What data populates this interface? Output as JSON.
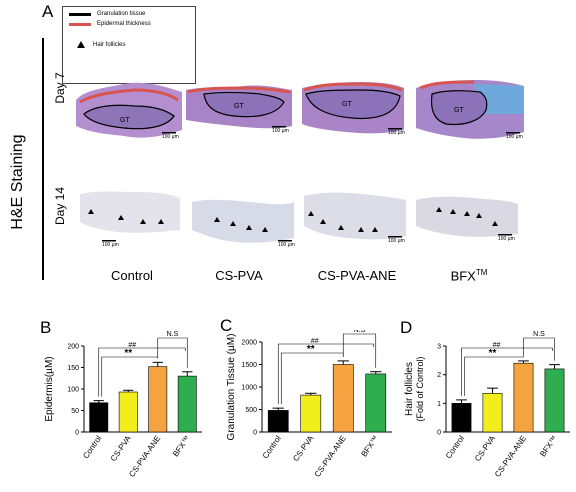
{
  "panels": {
    "A": "A",
    "B": "B",
    "C": "C",
    "D": "D"
  },
  "legend": {
    "granulation": "Granulation tissue",
    "epidermal": "Epidermal thickness",
    "hair": "Hair follicles",
    "colors": {
      "granulation": "#000000",
      "epidermal": "#d9534f"
    }
  },
  "staining_title": "H&E Staining",
  "days": {
    "day7": "Day 7",
    "day14": "Day 14"
  },
  "gt_label": "GT",
  "scale_label": "100 µm",
  "groups": [
    "Control",
    "CS-PVA",
    "CS-PVA-ANE",
    "BFX"
  ],
  "tm": "TM",
  "bar_colors": [
    "#000000",
    "#f2ee1b",
    "#f4a340",
    "#2fae4f"
  ],
  "chart_data": [
    {
      "type": "bar",
      "panel": "B",
      "categories": [
        "Control",
        "CS-PVA",
        "CS-PVA-ANE",
        "BFX™"
      ],
      "values": [
        68,
        93,
        152,
        130
      ],
      "errors": [
        5,
        4,
        10,
        10
      ],
      "ylabel": "Epidermis(µM)",
      "ylim": [
        0,
        200
      ],
      "yticks": [
        0,
        50,
        100,
        150,
        200
      ],
      "significance": {
        "hash": "##",
        "star": "**",
        "ns": "N.S"
      }
    },
    {
      "type": "bar",
      "panel": "C",
      "categories": [
        "Control",
        "CS-PVA",
        "CS-PVA-ANE",
        "BFX™"
      ],
      "values": [
        480,
        820,
        1500,
        1290
      ],
      "errors": [
        50,
        40,
        80,
        50
      ],
      "ylabel": "Granulation Tissue (µM)",
      "ylim": [
        0,
        2000
      ],
      "yticks": [
        0,
        500,
        1000,
        1500,
        2000
      ],
      "significance": {
        "hash": "##",
        "star": "**",
        "ns": "N.S"
      }
    },
    {
      "type": "bar",
      "panel": "D",
      "categories": [
        "Control",
        "CS-PVA",
        "CS-PVA-ANE",
        "BFX™"
      ],
      "values": [
        1.0,
        1.35,
        2.4,
        2.2
      ],
      "errors": [
        0.12,
        0.18,
        0.08,
        0.15
      ],
      "ylabel": "Hair follicles",
      "ylabel2": "(Fold of Control)",
      "ylim": [
        0,
        3
      ],
      "yticks": [
        0,
        1,
        2,
        3
      ],
      "significance": {
        "hash": "##",
        "star": "**",
        "ns": "N.S"
      }
    }
  ]
}
